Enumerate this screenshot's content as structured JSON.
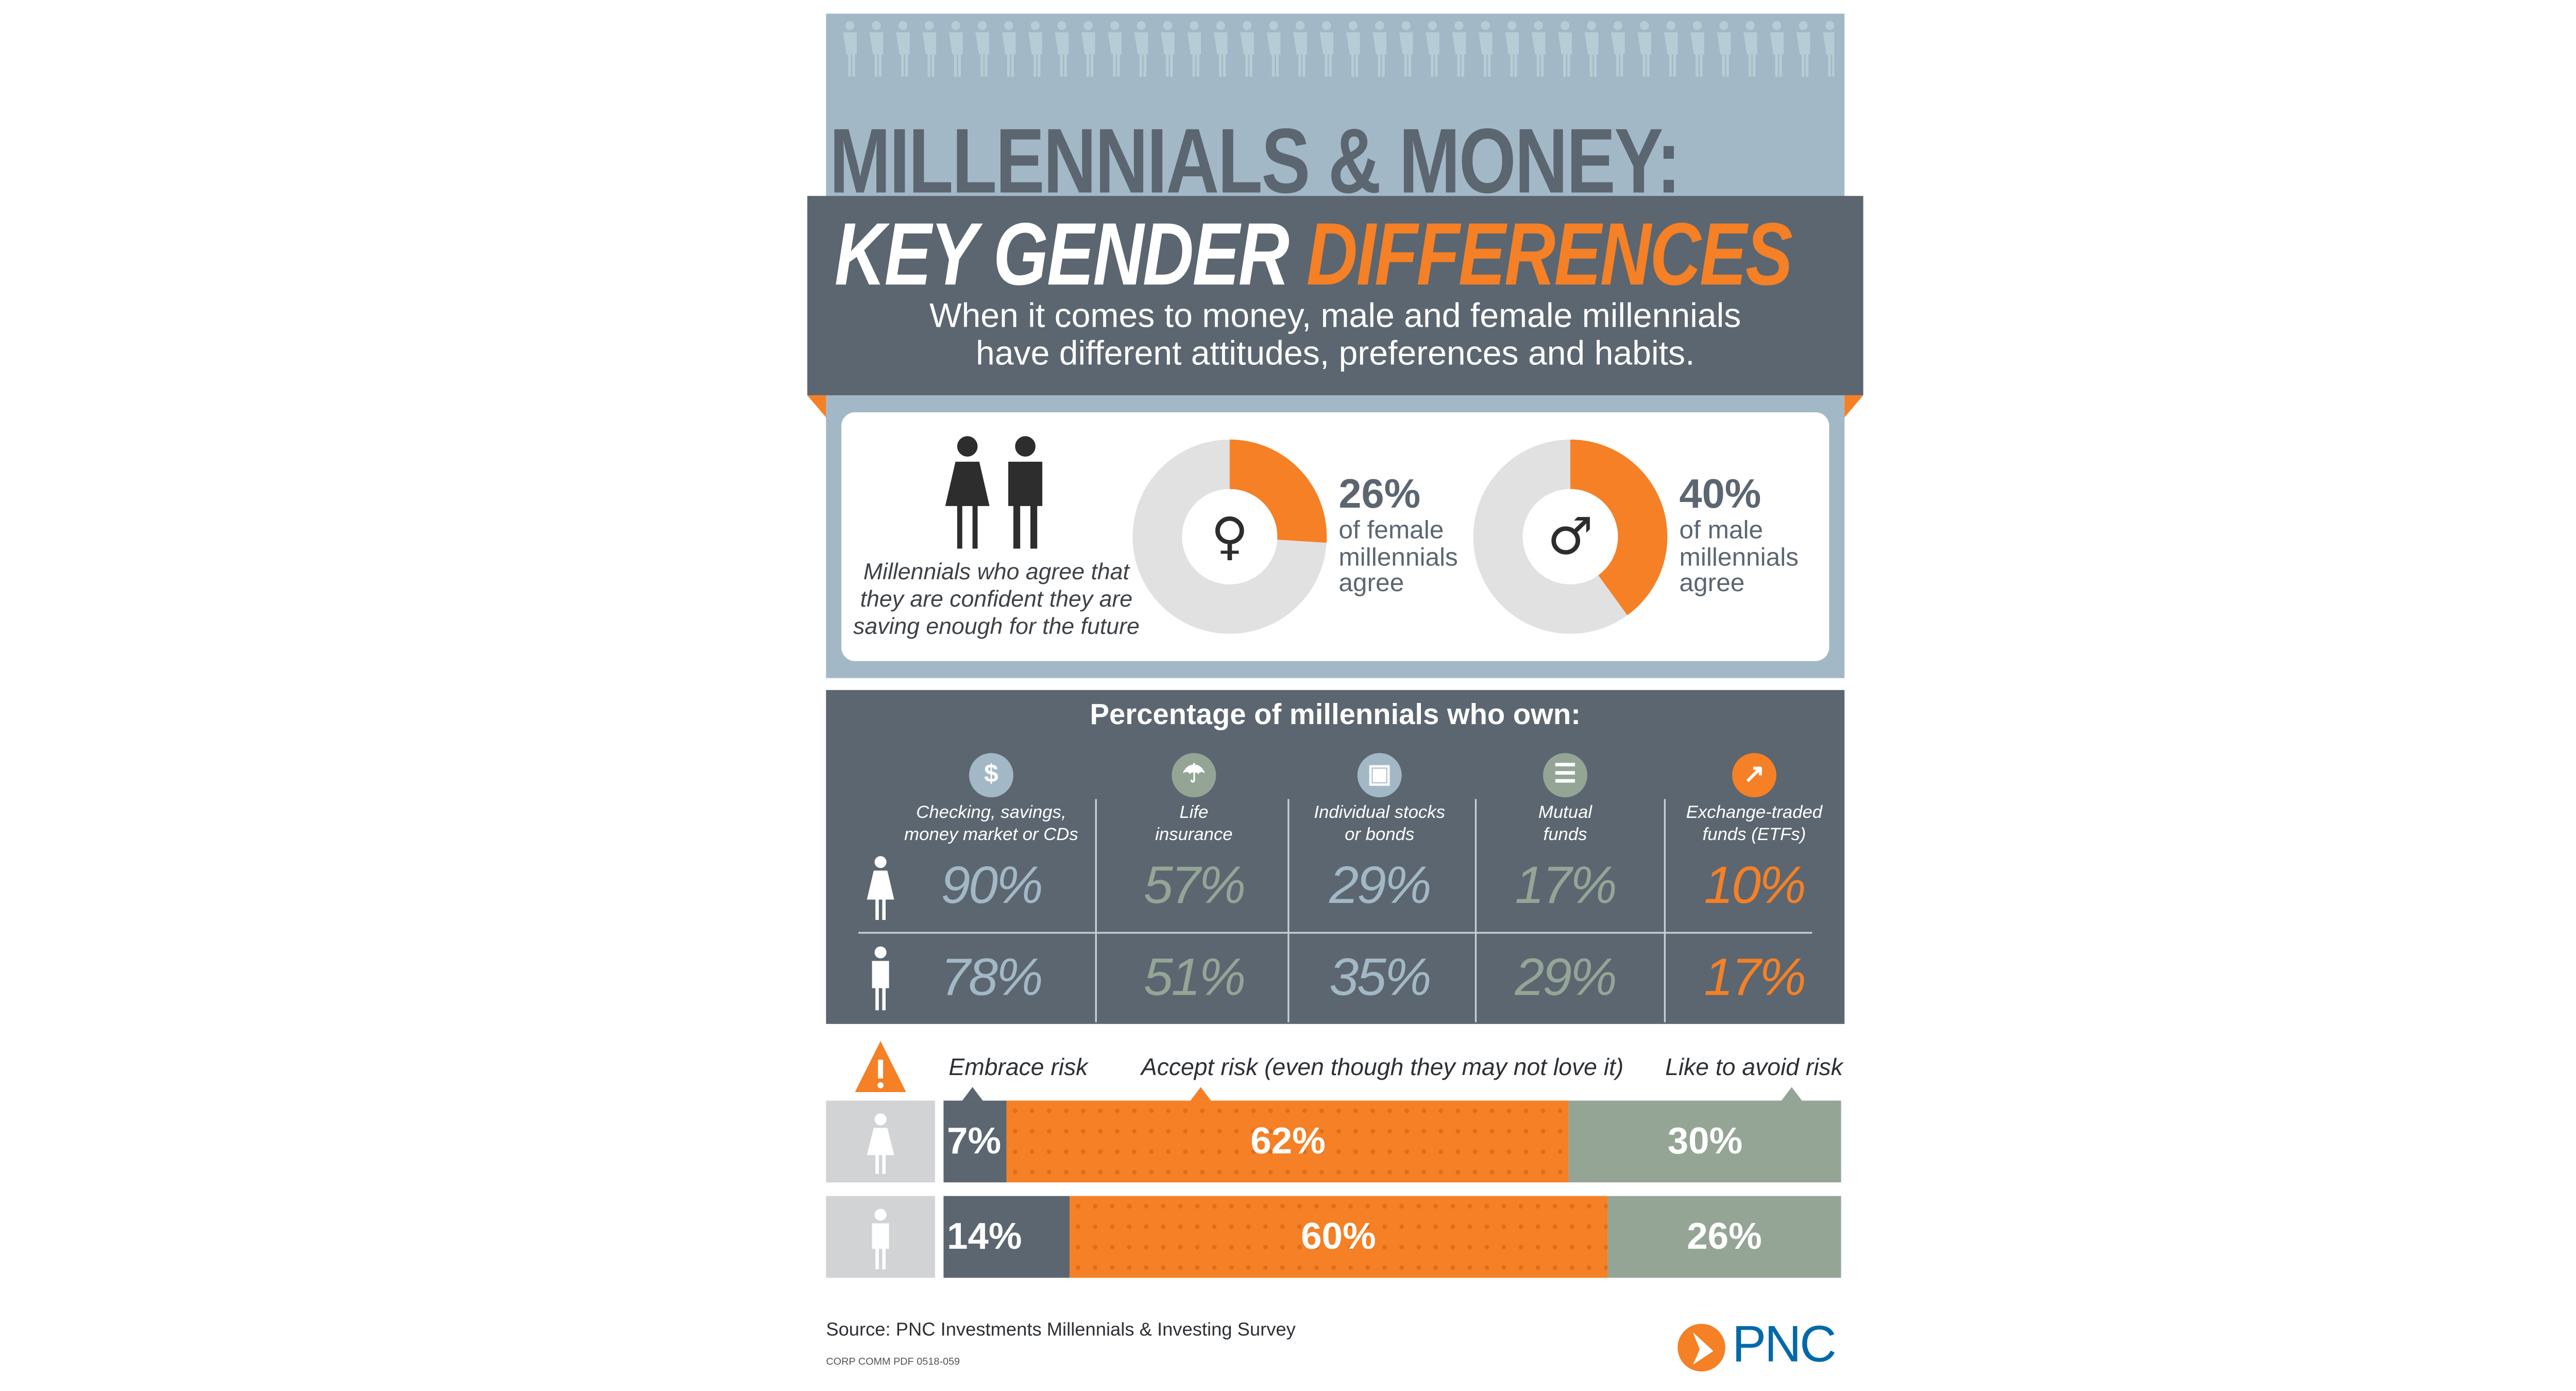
{
  "header": {
    "title_line1": "MILLENNIALS & MONEY:",
    "title_line2_white": "KEY GENDER ",
    "title_line2_orange": "DIFFERENCES",
    "subtitle_line1": "When it comes to money, male and female millennials",
    "subtitle_line2": "have different attitudes, preferences and habits."
  },
  "confidence": {
    "caption_line1": "Millennials who agree that",
    "caption_line2": "they are confident they are",
    "caption_line3": "saving enough for the future",
    "female": {
      "value": "26%",
      "line1": "of female",
      "line2": "millennials",
      "line3": "agree",
      "icon": "female-symbol-icon"
    },
    "male": {
      "value": "40%",
      "line1": "of male",
      "line2": "millennials",
      "line3": "agree",
      "icon": "male-symbol-icon"
    }
  },
  "ownership": {
    "title": "Percentage of millennials who own:",
    "columns": [
      {
        "line1": "Checking, savings,",
        "line2": "money market or CDs",
        "icon": "dollar-icon",
        "icon_color": "#A3B8C6",
        "value_color": "#A3B8C6",
        "female": "90%",
        "male": "78%"
      },
      {
        "line1": "Life",
        "line2": "insurance",
        "icon": "umbrella-icon",
        "icon_color": "#94A596",
        "value_color": "#94A596",
        "female": "57%",
        "male": "51%"
      },
      {
        "line1": "Individual stocks",
        "line2": "or bonds",
        "icon": "certificate-icon",
        "icon_color": "#A3B8C6",
        "value_color": "#A3B8C6",
        "female": "29%",
        "male": "35%"
      },
      {
        "line1": "Mutual",
        "line2": "funds",
        "icon": "clipboard-icon",
        "icon_color": "#94A596",
        "value_color": "#94A596",
        "female": "17%",
        "male": "29%"
      },
      {
        "line1": "Exchange-traded",
        "line2": "funds (ETFs)",
        "icon": "chart-line-icon",
        "icon_color": "#F58025",
        "value_color": "#F58025",
        "female": "10%",
        "male": "17%"
      }
    ]
  },
  "risk": {
    "labels": [
      "Embrace risk",
      "Accept risk (even though they may not love it)",
      "Like to avoid risk"
    ],
    "female": [
      "7%",
      "62%",
      "30%"
    ],
    "male": [
      "14%",
      "60%",
      "26%"
    ]
  },
  "footer": {
    "source": "Source: PNC Investments Millennials & Investing Survey",
    "code": "CORP COMM PDF 0518-059",
    "logo": "PNC"
  },
  "colors": {
    "orange": "#F58025",
    "slate": "#5B6670",
    "light_blue": "#A3B8C6",
    "sage": "#94A596",
    "gray": "#E1E1E1",
    "pnc_blue": "#0069AA"
  },
  "chart_data": [
    {
      "type": "pie",
      "title": "",
      "series": [
        {
          "name": "female millennials",
          "values": [
            26,
            74
          ]
        },
        {
          "name": "male millennials",
          "values": [
            40,
            60
          ]
        }
      ]
    },
    {
      "type": "table",
      "title": "Percentage of millennials who own:",
      "categories": [
        "Checking, savings, money market or CDs",
        "Life insurance",
        "Individual stocks or bonds",
        "Mutual funds",
        "Exchange-traded funds (ETFs)"
      ],
      "series": [
        {
          "values": [
            90,
            57,
            29,
            17,
            10
          ]
        },
        {
          "values": [
            78,
            51,
            35,
            29,
            17
          ]
        }
      ]
    },
    {
      "type": "bar",
      "stacked": true,
      "orientation": "horizontal",
      "categories": [
        "Embrace risk",
        "Accept risk (even though they may not love it)",
        "Like to avoid risk"
      ],
      "series": [
        {
          "values": [
            7,
            62,
            30
          ]
        },
        {
          "values": [
            14,
            60,
            26
          ]
        }
      ]
    }
  ]
}
